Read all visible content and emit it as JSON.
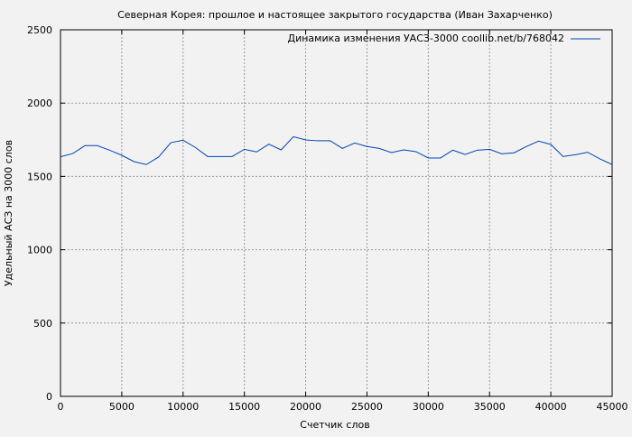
{
  "chart_data": {
    "type": "line",
    "title": "Северная Корея: прошлое и настоящее закрытого государства (Иван Захарченко)",
    "xlabel": "Счетчик слов",
    "ylabel": "Удельный АСЗ на 3000 слов",
    "xlim": [
      0,
      45000
    ],
    "ylim": [
      0,
      2500
    ],
    "xticks": [
      0,
      5000,
      10000,
      15000,
      20000,
      25000,
      30000,
      35000,
      40000,
      45000
    ],
    "yticks": [
      0,
      500,
      1000,
      1500,
      2000,
      2500
    ],
    "grid": true,
    "legend_position": "top-right",
    "series": [
      {
        "name": "Динамика изменения УАСЗ-3000 coollib.net/b/768042",
        "color": "#0044bb",
        "x": [
          0,
          1000,
          2000,
          3000,
          4000,
          5000,
          6000,
          7000,
          8000,
          9000,
          10000,
          11000,
          12000,
          13000,
          14000,
          15000,
          16000,
          17000,
          18000,
          19000,
          20000,
          21000,
          22000,
          23000,
          24000,
          25000,
          26000,
          27000,
          28000,
          29000,
          30000,
          31000,
          32000,
          33000,
          34000,
          35000,
          36000,
          37000,
          38000,
          39000,
          40000,
          41000,
          42000,
          43000,
          44000,
          45000
        ],
        "values": [
          1634,
          1656,
          1710,
          1710,
          1679,
          1644,
          1601,
          1581,
          1632,
          1730,
          1747,
          1698,
          1636,
          1636,
          1636,
          1685,
          1667,
          1720,
          1681,
          1771,
          1749,
          1743,
          1743,
          1691,
          1728,
          1704,
          1691,
          1663,
          1681,
          1669,
          1626,
          1626,
          1679,
          1650,
          1679,
          1685,
          1654,
          1661,
          1704,
          1741,
          1718,
          1636,
          1648,
          1665,
          1620,
          1581
        ]
      }
    ]
  }
}
